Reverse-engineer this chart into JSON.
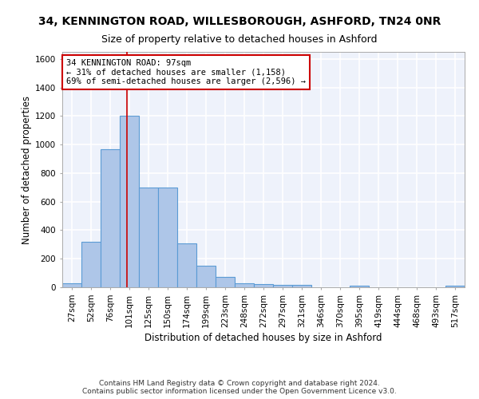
{
  "title_line1": "34, KENNINGTON ROAD, WILLESBOROUGH, ASHFORD, TN24 0NR",
  "title_line2": "Size of property relative to detached houses in Ashford",
  "xlabel": "Distribution of detached houses by size in Ashford",
  "ylabel": "Number of detached properties",
  "footer_line1": "Contains HM Land Registry data © Crown copyright and database right 2024.",
  "footer_line2": "Contains public sector information licensed under the Open Government Licence v3.0.",
  "categories": [
    "27sqm",
    "52sqm",
    "76sqm",
    "101sqm",
    "125sqm",
    "150sqm",
    "174sqm",
    "199sqm",
    "223sqm",
    "248sqm",
    "272sqm",
    "297sqm",
    "321sqm",
    "346sqm",
    "370sqm",
    "395sqm",
    "419sqm",
    "444sqm",
    "468sqm",
    "493sqm",
    "517sqm"
  ],
  "values": [
    30,
    320,
    970,
    1200,
    700,
    700,
    305,
    150,
    70,
    30,
    20,
    15,
    15,
    0,
    0,
    12,
    0,
    0,
    0,
    0,
    12
  ],
  "bar_color": "#aec6e8",
  "bar_edge_color": "#5b9bd5",
  "annotation_line1": "34 KENNINGTON ROAD: 97sqm",
  "annotation_line2": "← 31% of detached houses are smaller (1,158)",
  "annotation_line3": "69% of semi-detached houses are larger (2,596) →",
  "vline_color": "#cc0000",
  "annotation_box_color": "#cc0000",
  "ylim": [
    0,
    1650
  ],
  "yticks": [
    0,
    200,
    400,
    600,
    800,
    1000,
    1200,
    1400,
    1600
  ],
  "bg_color": "#eef2fb",
  "grid_color": "#ffffff",
  "title_fontsize": 10,
  "subtitle_fontsize": 9,
  "axis_label_fontsize": 8.5,
  "tick_fontsize": 7.5,
  "footer_fontsize": 6.5
}
